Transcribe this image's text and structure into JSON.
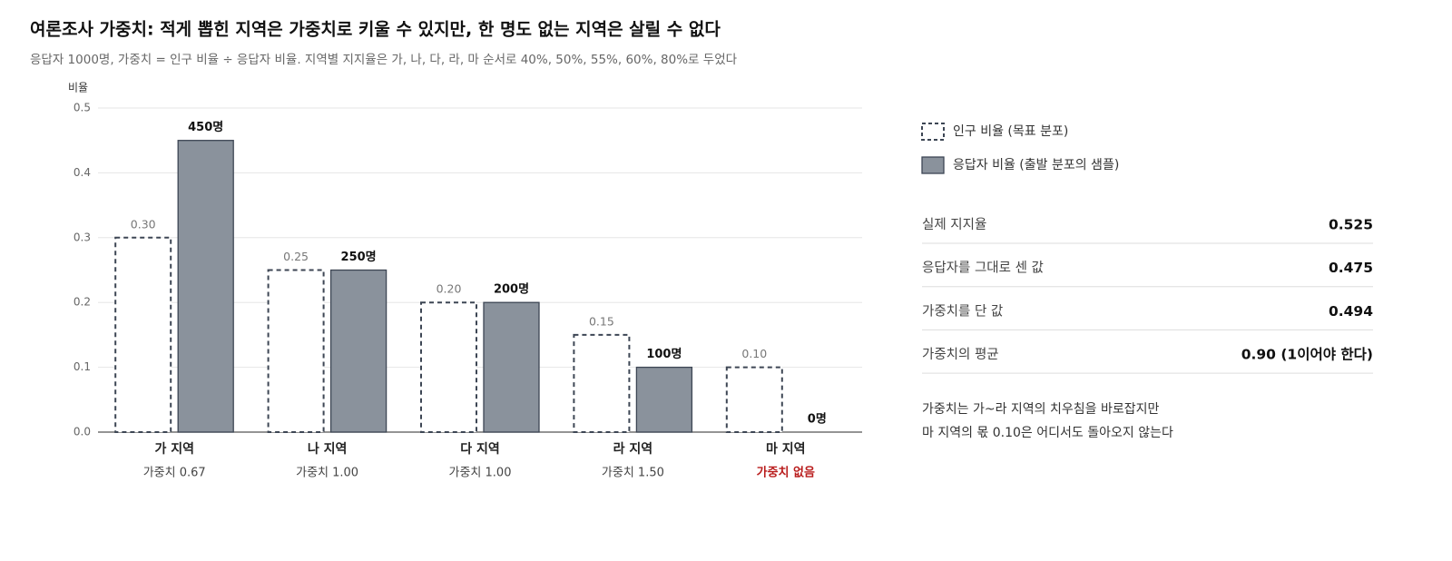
{
  "chart_data": {
    "type": "bar",
    "title": "여론조사 가중치: 적게 뽑힌 지역은 가중치로 키울 수 있지만, 한 명도 없는 지역은 살릴 수 없다",
    "subtitle": "응답자 1000명, 가중치 = 인구 비율 ÷ 응답자 비율. 지역별 지지율은 가, 나, 다, 라, 마 순서로 40%, 50%, 55%, 60%, 80%로 두었다",
    "y_label": "비율",
    "categories": [
      "가 지역",
      "나 지역",
      "다 지역",
      "라 지역",
      "마 지역"
    ],
    "category_notes": [
      "가중치 0.67",
      "가중치 1.00",
      "가중치 1.00",
      "가중치 1.50",
      "가중치 없음"
    ],
    "series": [
      {
        "name": "인구 비율 (목표 분포)",
        "color": "#3d4654",
        "style": "dashed",
        "values": [
          0.3,
          0.25,
          0.2,
          0.15,
          0.1
        ],
        "value_labels": [
          "0.30",
          "0.25",
          "0.20",
          "0.15",
          "0.10"
        ]
      },
      {
        "name": "응답자 비율 (출발 분포의 샘플)",
        "color": "#8a929c",
        "style": "solid",
        "values": [
          0.45,
          0.25,
          0.2,
          0.1,
          0
        ],
        "value_labels": [
          "450명",
          "250명",
          "200명",
          "100명",
          "0명"
        ]
      }
    ],
    "ylim": [
      0,
      0.5
    ],
    "yticks": [
      {
        "value": 0,
        "label": "0.0"
      },
      0.1,
      0.2,
      0.3,
      0.4,
      0.5
    ],
    "grid": true
  },
  "panel": {
    "stats": [
      {
        "label": "실제 지지율",
        "value": "0.525"
      },
      {
        "label": "응답자를 그대로 센 값",
        "value": "0.475"
      },
      {
        "label": "가중치를 단 값",
        "value": "0.494"
      },
      {
        "label": "가중치의 평균",
        "value": "0.90 (1이어야 한다)"
      }
    ],
    "note": [
      "가중치는 가~라 지역의 치우침을 바로잡지만",
      "마 지역의 몫 0.10은 어디서도 돌아오지 않는다"
    ]
  }
}
